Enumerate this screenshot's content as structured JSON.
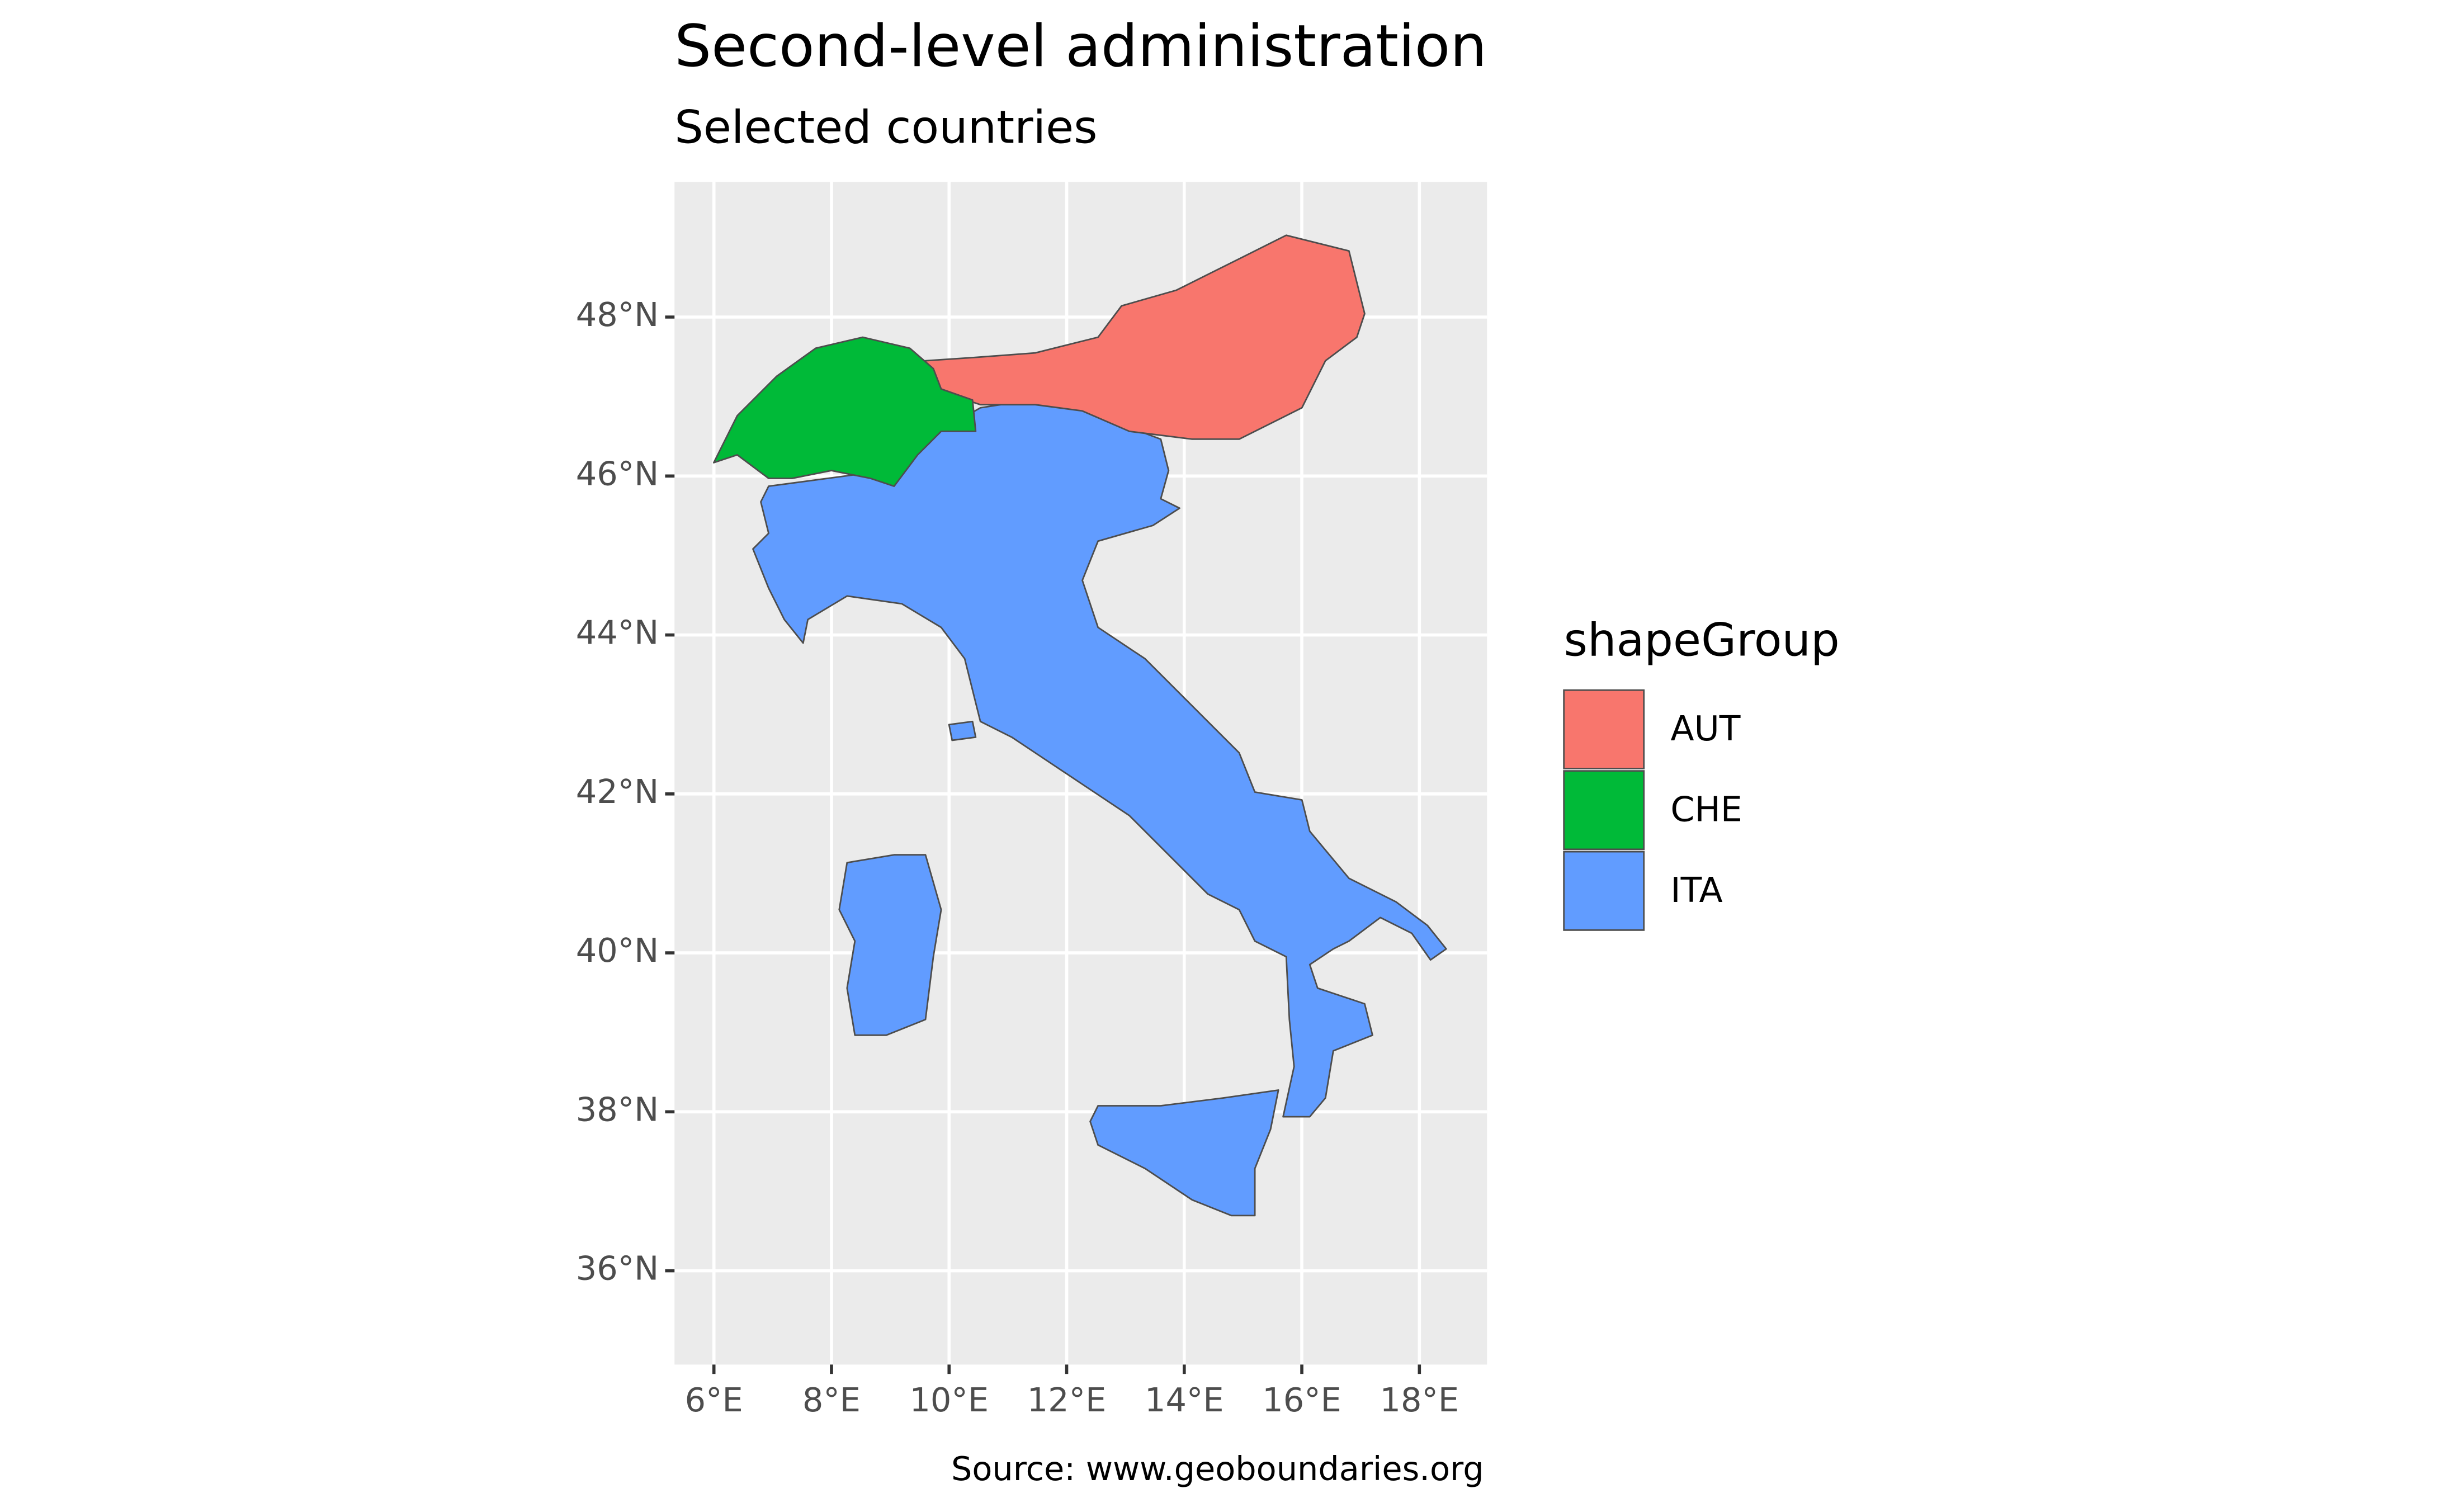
{
  "chart_data": {
    "type": "map",
    "title": "Second-level administration",
    "subtitle": "Selected countries",
    "caption": "Source: www.geoboundaries.org",
    "legend_title": "shapeGroup",
    "series": [
      {
        "name": "AUT",
        "color": "#f8766d"
      },
      {
        "name": "CHE",
        "color": "#00ba38"
      },
      {
        "name": "ITA",
        "color": "#619cff"
      }
    ],
    "xlim": [
      5.33,
      19.15
    ],
    "ylim": [
      34.82,
      49.7
    ],
    "xticks": [
      {
        "value": 6,
        "label": "6°E"
      },
      {
        "value": 8,
        "label": "8°E"
      },
      {
        "value": 10,
        "label": "10°E"
      },
      {
        "value": 12,
        "label": "12°E"
      },
      {
        "value": 14,
        "label": "14°E"
      },
      {
        "value": 16,
        "label": "16°E"
      },
      {
        "value": 18,
        "label": "18°E"
      }
    ],
    "yticks": [
      {
        "value": 36,
        "label": "36°N"
      },
      {
        "value": 38,
        "label": "38°N"
      },
      {
        "value": 40,
        "label": "40°N"
      },
      {
        "value": 42,
        "label": "42°N"
      },
      {
        "value": 44,
        "label": "44°N"
      },
      {
        "value": 46,
        "label": "46°N"
      },
      {
        "value": 48,
        "label": "48°N"
      }
    ],
    "grid": true,
    "legend_position": "right"
  }
}
